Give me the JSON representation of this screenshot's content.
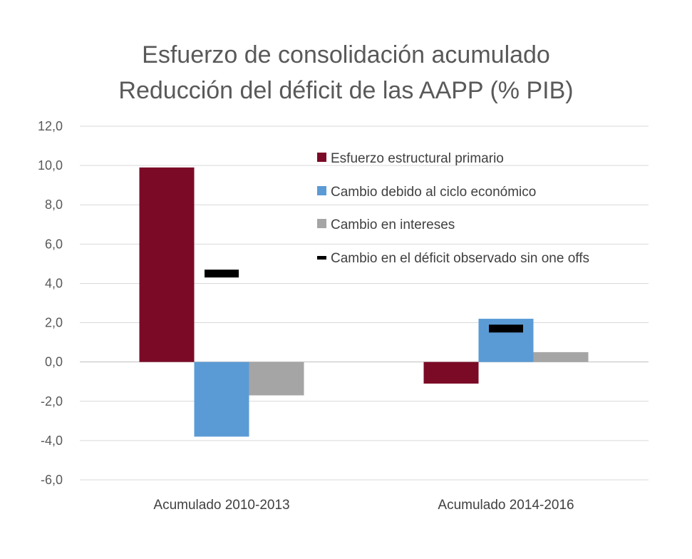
{
  "chart_data": {
    "type": "bar",
    "title": "Esfuerzo de consolidación acumulado",
    "subtitle": "Reducción del déficit de las AAPP (% PIB)",
    "xlabel": "",
    "ylabel": "",
    "ylim": [
      -6,
      12
    ],
    "y_ticks": [
      12,
      10,
      8,
      6,
      4,
      2,
      0,
      -2,
      -4,
      -6
    ],
    "y_tick_labels": [
      "12,0",
      "10,0",
      "8,0",
      "6,0",
      "4,0",
      "2,0",
      "0,0",
      "-2,0",
      "-4,0",
      "-6,0"
    ],
    "grid": true,
    "legend_position": "top-right",
    "categories": [
      "Acumulado 2010-2013",
      "Acumulado 2014-2016"
    ],
    "series": [
      {
        "name": "Esfuerzo estructural primario",
        "type": "bar",
        "color": "#7B0A26",
        "values": [
          9.9,
          -1.1
        ]
      },
      {
        "name": "Cambio debido al ciclo económico",
        "type": "bar",
        "color": "#5B9BD5",
        "values": [
          -3.8,
          2.2
        ]
      },
      {
        "name": "Cambio en intereses",
        "type": "bar",
        "color": "#A5A5A5",
        "values": [
          -1.7,
          0.5
        ]
      },
      {
        "name": "Cambio en el déficit observado sin one offs",
        "type": "marker",
        "color": "#000000",
        "values": [
          4.5,
          1.7
        ]
      }
    ]
  }
}
